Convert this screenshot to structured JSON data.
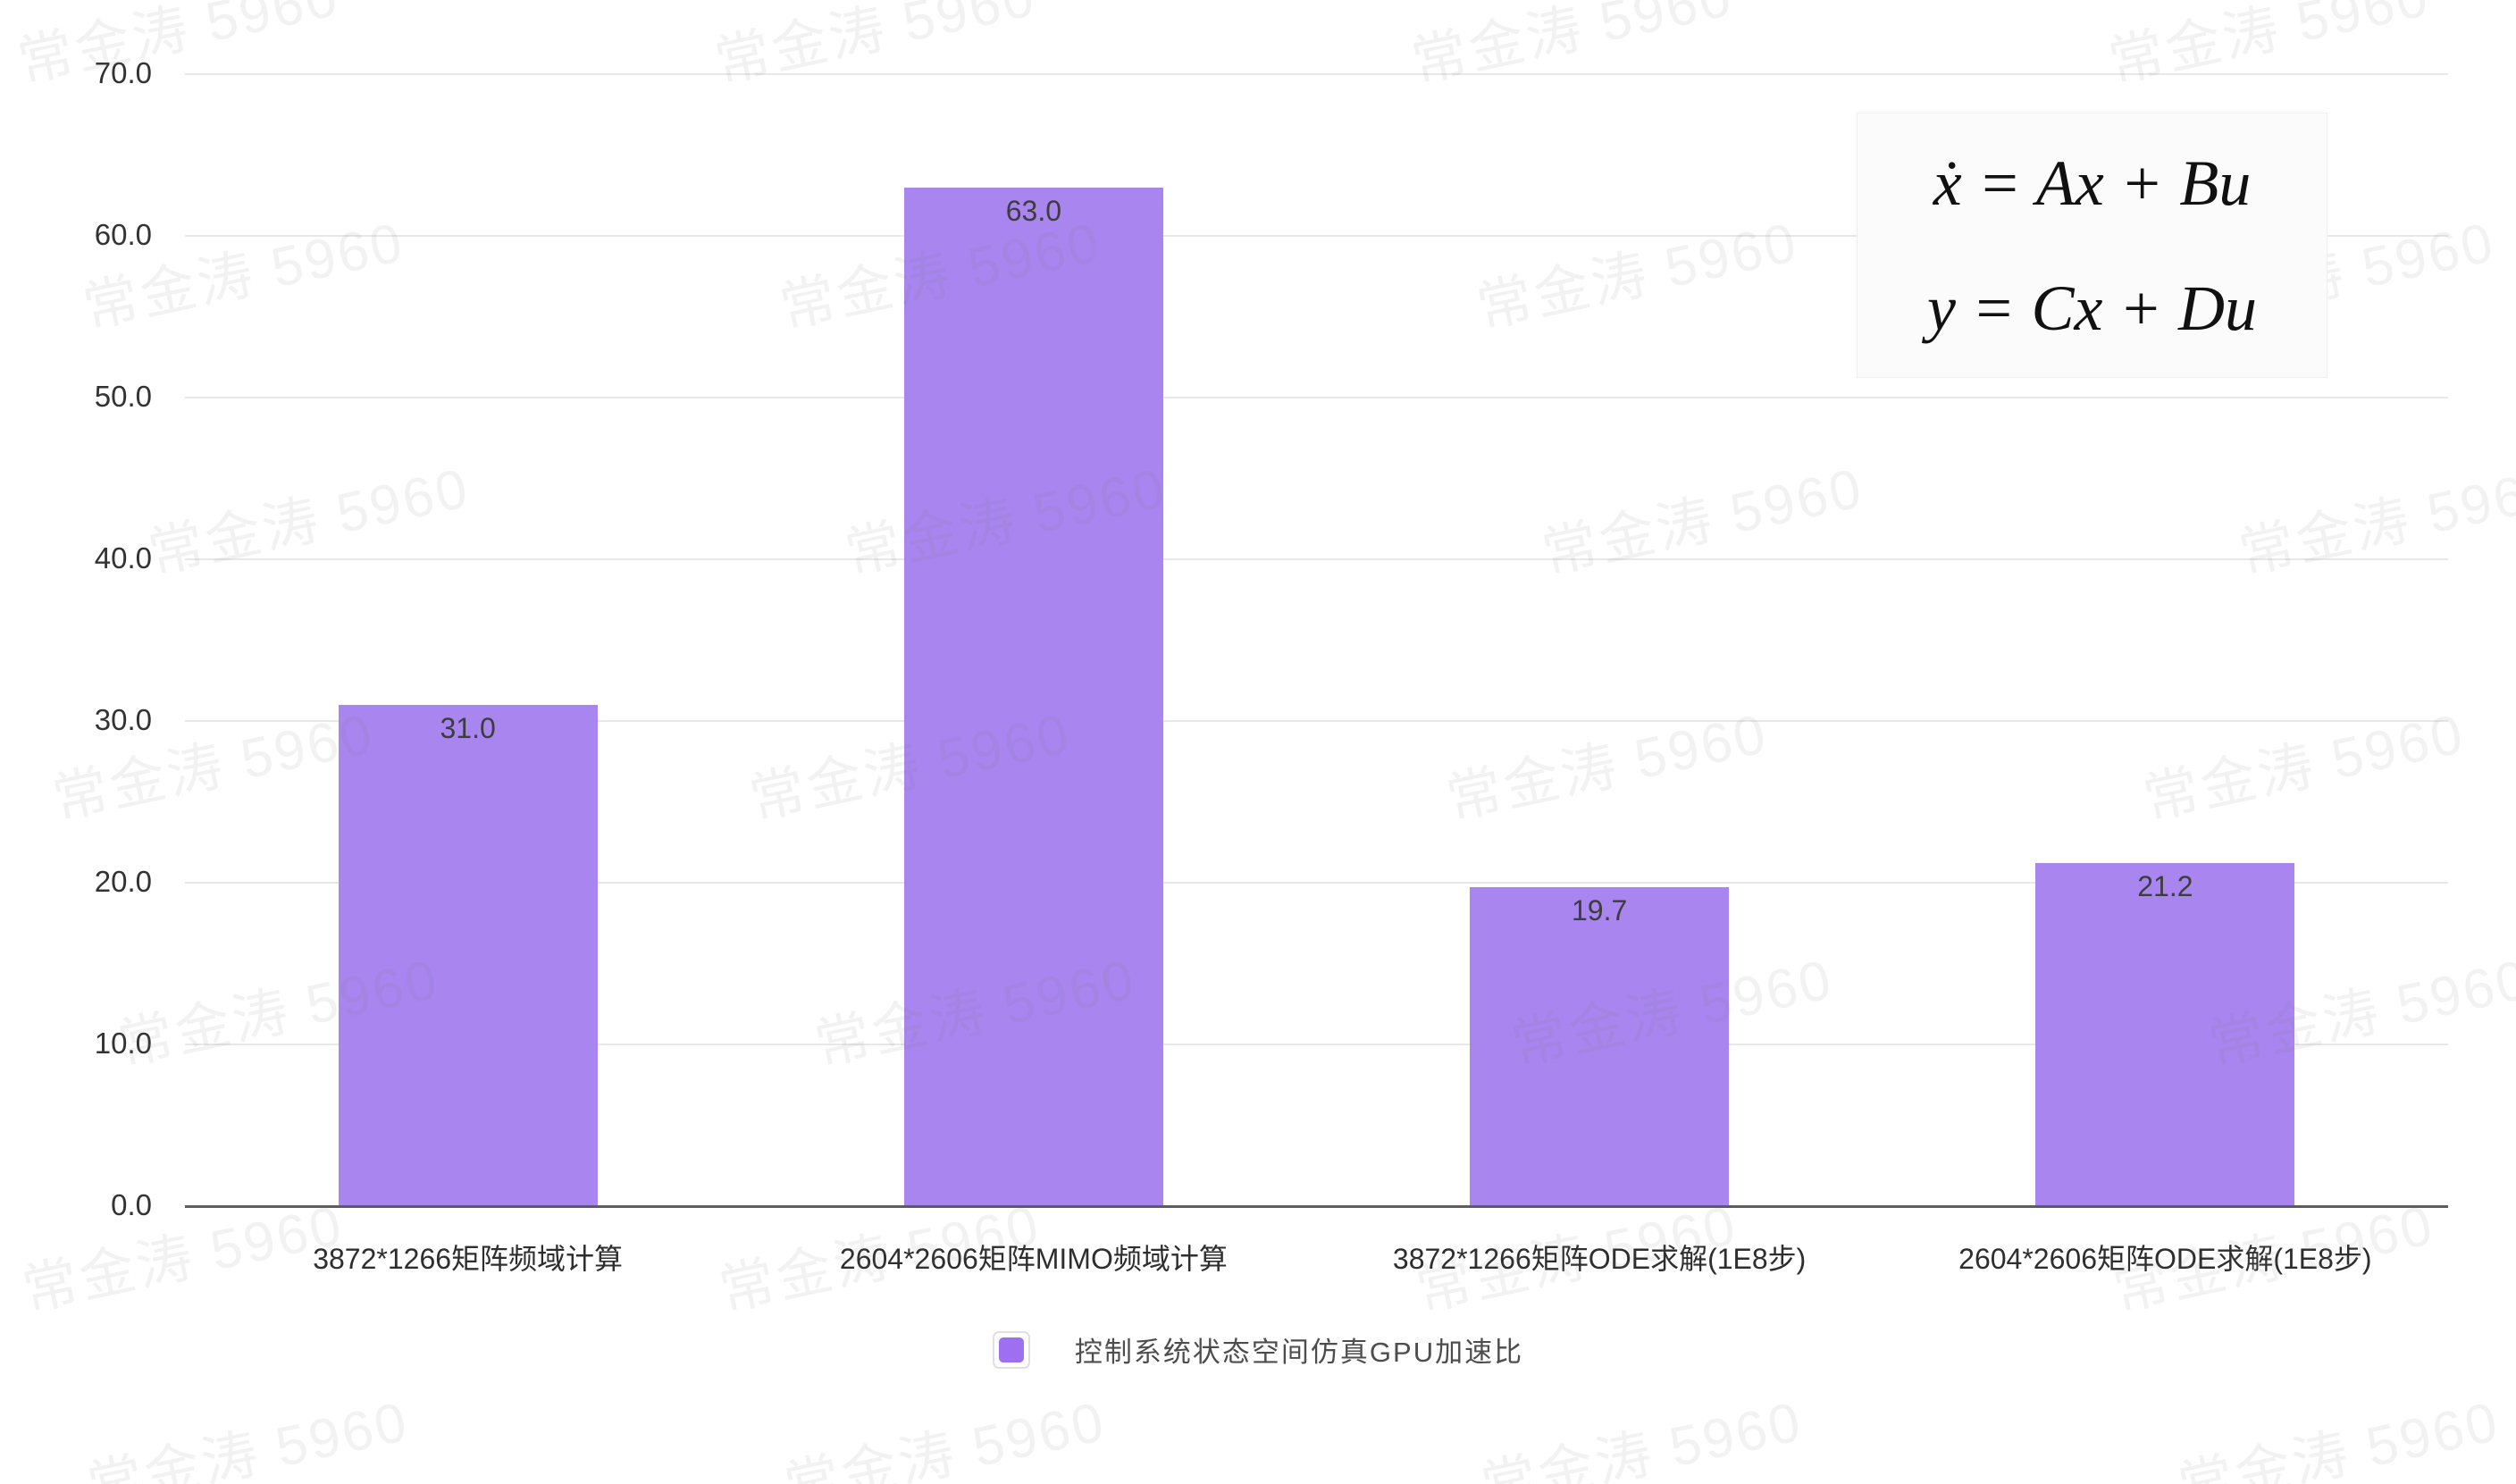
{
  "watermark": {
    "text": "常金涛 5960"
  },
  "chart_data": {
    "type": "bar",
    "title": "",
    "xlabel": "",
    "ylabel": "",
    "categories": [
      "3872*1266矩阵频域计算",
      "2604*2606矩阵MIMO频域计算",
      "3872*1266矩阵ODE求解(1E8步)",
      "2604*2606矩阵ODE求解(1E8步)"
    ],
    "values": [
      31.0,
      63.0,
      19.7,
      21.2
    ],
    "value_labels": [
      "31.0",
      "63.0",
      "19.7",
      "21.2"
    ],
    "series_name": "控制系统状态空间仿真GPU加速比",
    "ylim": [
      0,
      70
    ],
    "yticks": [
      "0.0",
      "10.0",
      "20.0",
      "30.0",
      "40.0",
      "50.0",
      "60.0",
      "70.0"
    ],
    "grid": true,
    "legend_position": "bottom",
    "bar_color": "#a885ef",
    "grid_color": "#e8e8e8",
    "axis_color": "#5c5c5c"
  },
  "legend": {
    "label": "控制系统状态空间仿真GPU加速比",
    "marker_color": "#9f6ff2"
  },
  "formula": {
    "line1": "ẋ = Ax + Bu",
    "line2": "y = Cx + Du"
  }
}
